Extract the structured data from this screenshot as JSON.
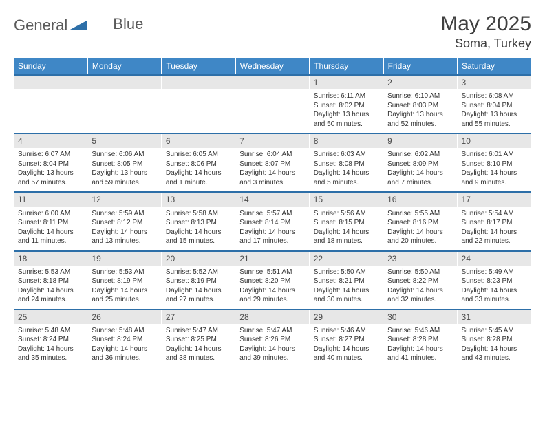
{
  "brand": {
    "name_part1": "General",
    "name_part2": "Blue",
    "accent_color": "#2d6fa8"
  },
  "header": {
    "month_title": "May 2025",
    "location": "Soma, Turkey"
  },
  "colors": {
    "header_row_bg": "#3f87c6",
    "header_row_text": "#ffffff",
    "date_bar_bg": "#e7e7e7",
    "week_border": "#2d6fa8",
    "text": "#333333"
  },
  "day_names": [
    "Sunday",
    "Monday",
    "Tuesday",
    "Wednesday",
    "Thursday",
    "Friday",
    "Saturday"
  ],
  "weeks": [
    [
      {
        "date": "",
        "sunrise": "",
        "sunset": "",
        "daylight": ""
      },
      {
        "date": "",
        "sunrise": "",
        "sunset": "",
        "daylight": ""
      },
      {
        "date": "",
        "sunrise": "",
        "sunset": "",
        "daylight": ""
      },
      {
        "date": "",
        "sunrise": "",
        "sunset": "",
        "daylight": ""
      },
      {
        "date": "1",
        "sunrise": "Sunrise: 6:11 AM",
        "sunset": "Sunset: 8:02 PM",
        "daylight": "Daylight: 13 hours and 50 minutes."
      },
      {
        "date": "2",
        "sunrise": "Sunrise: 6:10 AM",
        "sunset": "Sunset: 8:03 PM",
        "daylight": "Daylight: 13 hours and 52 minutes."
      },
      {
        "date": "3",
        "sunrise": "Sunrise: 6:08 AM",
        "sunset": "Sunset: 8:04 PM",
        "daylight": "Daylight: 13 hours and 55 minutes."
      }
    ],
    [
      {
        "date": "4",
        "sunrise": "Sunrise: 6:07 AM",
        "sunset": "Sunset: 8:04 PM",
        "daylight": "Daylight: 13 hours and 57 minutes."
      },
      {
        "date": "5",
        "sunrise": "Sunrise: 6:06 AM",
        "sunset": "Sunset: 8:05 PM",
        "daylight": "Daylight: 13 hours and 59 minutes."
      },
      {
        "date": "6",
        "sunrise": "Sunrise: 6:05 AM",
        "sunset": "Sunset: 8:06 PM",
        "daylight": "Daylight: 14 hours and 1 minute."
      },
      {
        "date": "7",
        "sunrise": "Sunrise: 6:04 AM",
        "sunset": "Sunset: 8:07 PM",
        "daylight": "Daylight: 14 hours and 3 minutes."
      },
      {
        "date": "8",
        "sunrise": "Sunrise: 6:03 AM",
        "sunset": "Sunset: 8:08 PM",
        "daylight": "Daylight: 14 hours and 5 minutes."
      },
      {
        "date": "9",
        "sunrise": "Sunrise: 6:02 AM",
        "sunset": "Sunset: 8:09 PM",
        "daylight": "Daylight: 14 hours and 7 minutes."
      },
      {
        "date": "10",
        "sunrise": "Sunrise: 6:01 AM",
        "sunset": "Sunset: 8:10 PM",
        "daylight": "Daylight: 14 hours and 9 minutes."
      }
    ],
    [
      {
        "date": "11",
        "sunrise": "Sunrise: 6:00 AM",
        "sunset": "Sunset: 8:11 PM",
        "daylight": "Daylight: 14 hours and 11 minutes."
      },
      {
        "date": "12",
        "sunrise": "Sunrise: 5:59 AM",
        "sunset": "Sunset: 8:12 PM",
        "daylight": "Daylight: 14 hours and 13 minutes."
      },
      {
        "date": "13",
        "sunrise": "Sunrise: 5:58 AM",
        "sunset": "Sunset: 8:13 PM",
        "daylight": "Daylight: 14 hours and 15 minutes."
      },
      {
        "date": "14",
        "sunrise": "Sunrise: 5:57 AM",
        "sunset": "Sunset: 8:14 PM",
        "daylight": "Daylight: 14 hours and 17 minutes."
      },
      {
        "date": "15",
        "sunrise": "Sunrise: 5:56 AM",
        "sunset": "Sunset: 8:15 PM",
        "daylight": "Daylight: 14 hours and 18 minutes."
      },
      {
        "date": "16",
        "sunrise": "Sunrise: 5:55 AM",
        "sunset": "Sunset: 8:16 PM",
        "daylight": "Daylight: 14 hours and 20 minutes."
      },
      {
        "date": "17",
        "sunrise": "Sunrise: 5:54 AM",
        "sunset": "Sunset: 8:17 PM",
        "daylight": "Daylight: 14 hours and 22 minutes."
      }
    ],
    [
      {
        "date": "18",
        "sunrise": "Sunrise: 5:53 AM",
        "sunset": "Sunset: 8:18 PM",
        "daylight": "Daylight: 14 hours and 24 minutes."
      },
      {
        "date": "19",
        "sunrise": "Sunrise: 5:53 AM",
        "sunset": "Sunset: 8:19 PM",
        "daylight": "Daylight: 14 hours and 25 minutes."
      },
      {
        "date": "20",
        "sunrise": "Sunrise: 5:52 AM",
        "sunset": "Sunset: 8:19 PM",
        "daylight": "Daylight: 14 hours and 27 minutes."
      },
      {
        "date": "21",
        "sunrise": "Sunrise: 5:51 AM",
        "sunset": "Sunset: 8:20 PM",
        "daylight": "Daylight: 14 hours and 29 minutes."
      },
      {
        "date": "22",
        "sunrise": "Sunrise: 5:50 AM",
        "sunset": "Sunset: 8:21 PM",
        "daylight": "Daylight: 14 hours and 30 minutes."
      },
      {
        "date": "23",
        "sunrise": "Sunrise: 5:50 AM",
        "sunset": "Sunset: 8:22 PM",
        "daylight": "Daylight: 14 hours and 32 minutes."
      },
      {
        "date": "24",
        "sunrise": "Sunrise: 5:49 AM",
        "sunset": "Sunset: 8:23 PM",
        "daylight": "Daylight: 14 hours and 33 minutes."
      }
    ],
    [
      {
        "date": "25",
        "sunrise": "Sunrise: 5:48 AM",
        "sunset": "Sunset: 8:24 PM",
        "daylight": "Daylight: 14 hours and 35 minutes."
      },
      {
        "date": "26",
        "sunrise": "Sunrise: 5:48 AM",
        "sunset": "Sunset: 8:24 PM",
        "daylight": "Daylight: 14 hours and 36 minutes."
      },
      {
        "date": "27",
        "sunrise": "Sunrise: 5:47 AM",
        "sunset": "Sunset: 8:25 PM",
        "daylight": "Daylight: 14 hours and 38 minutes."
      },
      {
        "date": "28",
        "sunrise": "Sunrise: 5:47 AM",
        "sunset": "Sunset: 8:26 PM",
        "daylight": "Daylight: 14 hours and 39 minutes."
      },
      {
        "date": "29",
        "sunrise": "Sunrise: 5:46 AM",
        "sunset": "Sunset: 8:27 PM",
        "daylight": "Daylight: 14 hours and 40 minutes."
      },
      {
        "date": "30",
        "sunrise": "Sunrise: 5:46 AM",
        "sunset": "Sunset: 8:28 PM",
        "daylight": "Daylight: 14 hours and 41 minutes."
      },
      {
        "date": "31",
        "sunrise": "Sunrise: 5:45 AM",
        "sunset": "Sunset: 8:28 PM",
        "daylight": "Daylight: 14 hours and 43 minutes."
      }
    ]
  ]
}
